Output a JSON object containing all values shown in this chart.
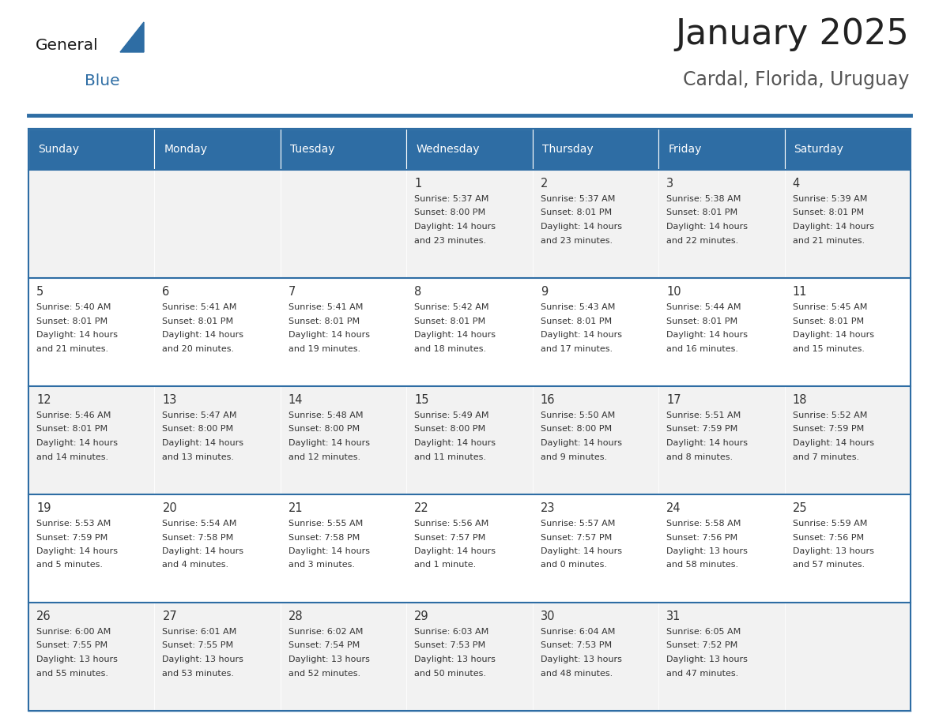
{
  "title": "January 2025",
  "subtitle": "Cardal, Florida, Uruguay",
  "days_of_week": [
    "Sunday",
    "Monday",
    "Tuesday",
    "Wednesday",
    "Thursday",
    "Friday",
    "Saturday"
  ],
  "header_bg": "#2E6DA4",
  "header_text": "#FFFFFF",
  "cell_bg_odd": "#F2F2F2",
  "cell_bg_even": "#FFFFFF",
  "cell_text": "#333333",
  "border_color": "#2E6DA4",
  "title_color": "#222222",
  "subtitle_color": "#555555",
  "logo_general_color": "#1a1a1a",
  "logo_blue_color": "#2E6DA4",
  "calendar_data": [
    [
      null,
      null,
      null,
      {
        "day": 1,
        "sunrise": "5:37 AM",
        "sunset": "8:00 PM",
        "daylight": "14 hours and 23 minutes."
      },
      {
        "day": 2,
        "sunrise": "5:37 AM",
        "sunset": "8:01 PM",
        "daylight": "14 hours and 23 minutes."
      },
      {
        "day": 3,
        "sunrise": "5:38 AM",
        "sunset": "8:01 PM",
        "daylight": "14 hours and 22 minutes."
      },
      {
        "day": 4,
        "sunrise": "5:39 AM",
        "sunset": "8:01 PM",
        "daylight": "14 hours and 21 minutes."
      }
    ],
    [
      {
        "day": 5,
        "sunrise": "5:40 AM",
        "sunset": "8:01 PM",
        "daylight": "14 hours and 21 minutes."
      },
      {
        "day": 6,
        "sunrise": "5:41 AM",
        "sunset": "8:01 PM",
        "daylight": "14 hours and 20 minutes."
      },
      {
        "day": 7,
        "sunrise": "5:41 AM",
        "sunset": "8:01 PM",
        "daylight": "14 hours and 19 minutes."
      },
      {
        "day": 8,
        "sunrise": "5:42 AM",
        "sunset": "8:01 PM",
        "daylight": "14 hours and 18 minutes."
      },
      {
        "day": 9,
        "sunrise": "5:43 AM",
        "sunset": "8:01 PM",
        "daylight": "14 hours and 17 minutes."
      },
      {
        "day": 10,
        "sunrise": "5:44 AM",
        "sunset": "8:01 PM",
        "daylight": "14 hours and 16 minutes."
      },
      {
        "day": 11,
        "sunrise": "5:45 AM",
        "sunset": "8:01 PM",
        "daylight": "14 hours and 15 minutes."
      }
    ],
    [
      {
        "day": 12,
        "sunrise": "5:46 AM",
        "sunset": "8:01 PM",
        "daylight": "14 hours and 14 minutes."
      },
      {
        "day": 13,
        "sunrise": "5:47 AM",
        "sunset": "8:00 PM",
        "daylight": "14 hours and 13 minutes."
      },
      {
        "day": 14,
        "sunrise": "5:48 AM",
        "sunset": "8:00 PM",
        "daylight": "14 hours and 12 minutes."
      },
      {
        "day": 15,
        "sunrise": "5:49 AM",
        "sunset": "8:00 PM",
        "daylight": "14 hours and 11 minutes."
      },
      {
        "day": 16,
        "sunrise": "5:50 AM",
        "sunset": "8:00 PM",
        "daylight": "14 hours and 9 minutes."
      },
      {
        "day": 17,
        "sunrise": "5:51 AM",
        "sunset": "7:59 PM",
        "daylight": "14 hours and 8 minutes."
      },
      {
        "day": 18,
        "sunrise": "5:52 AM",
        "sunset": "7:59 PM",
        "daylight": "14 hours and 7 minutes."
      }
    ],
    [
      {
        "day": 19,
        "sunrise": "5:53 AM",
        "sunset": "7:59 PM",
        "daylight": "14 hours and 5 minutes."
      },
      {
        "day": 20,
        "sunrise": "5:54 AM",
        "sunset": "7:58 PM",
        "daylight": "14 hours and 4 minutes."
      },
      {
        "day": 21,
        "sunrise": "5:55 AM",
        "sunset": "7:58 PM",
        "daylight": "14 hours and 3 minutes."
      },
      {
        "day": 22,
        "sunrise": "5:56 AM",
        "sunset": "7:57 PM",
        "daylight": "14 hours and 1 minute."
      },
      {
        "day": 23,
        "sunrise": "5:57 AM",
        "sunset": "7:57 PM",
        "daylight": "14 hours and 0 minutes."
      },
      {
        "day": 24,
        "sunrise": "5:58 AM",
        "sunset": "7:56 PM",
        "daylight": "13 hours and 58 minutes."
      },
      {
        "day": 25,
        "sunrise": "5:59 AM",
        "sunset": "7:56 PM",
        "daylight": "13 hours and 57 minutes."
      }
    ],
    [
      {
        "day": 26,
        "sunrise": "6:00 AM",
        "sunset": "7:55 PM",
        "daylight": "13 hours and 55 minutes."
      },
      {
        "day": 27,
        "sunrise": "6:01 AM",
        "sunset": "7:55 PM",
        "daylight": "13 hours and 53 minutes."
      },
      {
        "day": 28,
        "sunrise": "6:02 AM",
        "sunset": "7:54 PM",
        "daylight": "13 hours and 52 minutes."
      },
      {
        "day": 29,
        "sunrise": "6:03 AM",
        "sunset": "7:53 PM",
        "daylight": "13 hours and 50 minutes."
      },
      {
        "day": 30,
        "sunrise": "6:04 AM",
        "sunset": "7:53 PM",
        "daylight": "13 hours and 48 minutes."
      },
      {
        "day": 31,
        "sunrise": "6:05 AM",
        "sunset": "7:52 PM",
        "daylight": "13 hours and 47 minutes."
      },
      null
    ]
  ],
  "num_weeks": 5,
  "num_cols": 7
}
